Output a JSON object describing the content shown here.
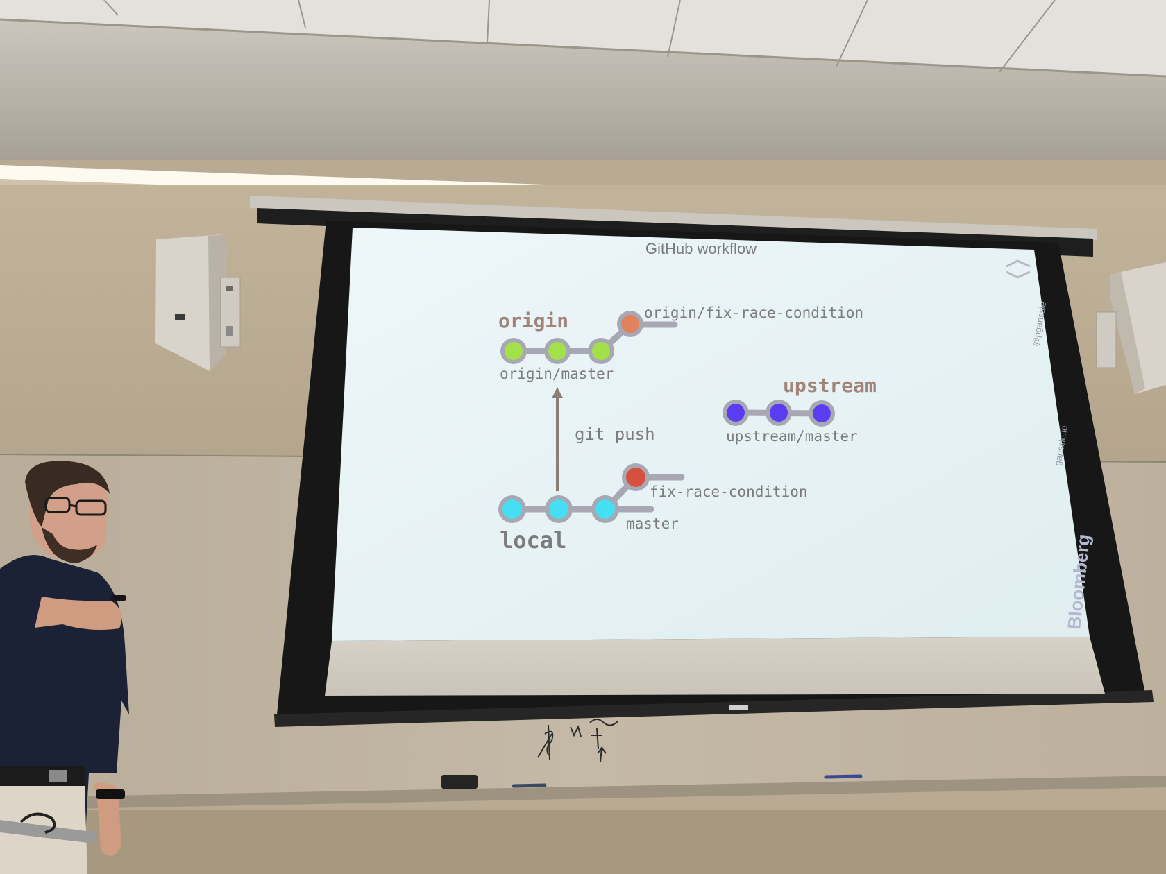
{
  "slide": {
    "title": "GitHub workflow",
    "origin_label": "origin",
    "origin_master_label": "origin/master",
    "origin_fix_label": "origin/fix-race-condition",
    "upstream_label": "upstream",
    "upstream_master_label": "upstream/master",
    "push_label": "git push",
    "local_label": "local",
    "local_fix_label": "fix-race-condition",
    "local_master_label": "master",
    "side_handle_1": "@pganssle",
    "side_handle_2": "ganssle.io",
    "brand": "Bloomberg"
  },
  "colors": {
    "origin_commit": "#a4e04a",
    "origin_fix_commit": "#e0825c",
    "upstream_commit": "#5a3df0",
    "local_commit": "#45def2",
    "local_fix_commit": "#d65040",
    "branch_line": "#a8a8b4",
    "label_gray": "#7c7c7c",
    "heading_brown": "#a08478",
    "screen": "#e6f2f4"
  },
  "icons": {
    "corner": "diamond-frame-icon"
  }
}
